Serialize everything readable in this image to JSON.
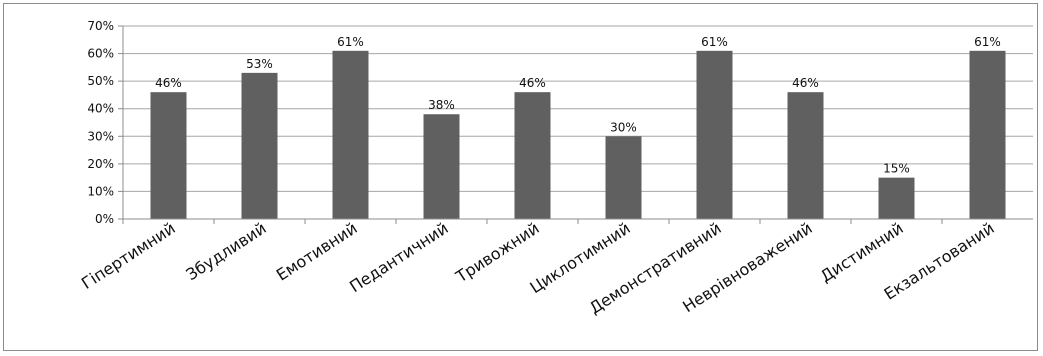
{
  "chart_data": {
    "type": "bar",
    "categories": [
      "Гіпертимний",
      "Збудливий",
      "Емотивний",
      "Педантичний",
      "Тривожний",
      "Циклотимний",
      "Демонстративний",
      "Неврівноважений",
      "Дистимний",
      "Екзальтований"
    ],
    "values": [
      46,
      53,
      61,
      38,
      46,
      30,
      61,
      46,
      15,
      61
    ],
    "data_labels": [
      "46%",
      "53%",
      "61%",
      "38%",
      "46%",
      "30%",
      "61%",
      "46%",
      "15%",
      "61%"
    ],
    "y_ticks": [
      "0%",
      "10%",
      "20%",
      "30%",
      "40%",
      "50%",
      "60%",
      "70%"
    ],
    "ylim": [
      0,
      70
    ],
    "grid": true,
    "legend": "none",
    "title": "",
    "xlabel": "",
    "ylabel": "",
    "colors": {
      "bar": "#606060",
      "grid": "#a6a6a6",
      "axis": "#8c8c8c"
    }
  }
}
